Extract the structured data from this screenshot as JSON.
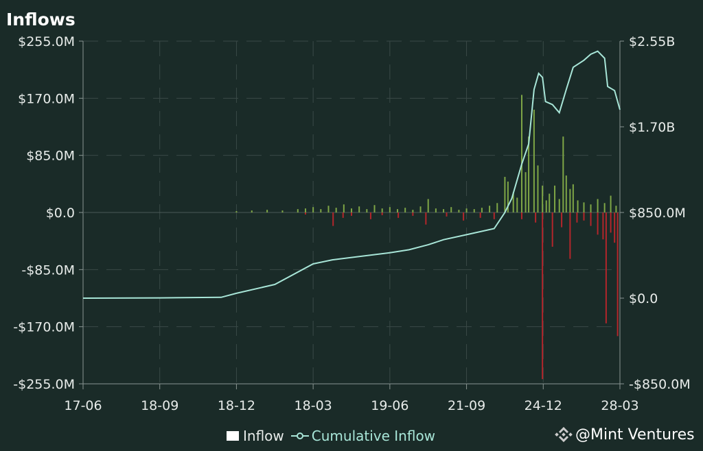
{
  "chart_data": {
    "type": "bar",
    "title": "Inflows",
    "x_ticks": [
      "17-06",
      "18-09",
      "18-12",
      "18-03",
      "19-06",
      "21-09",
      "24-12",
      "28-03"
    ],
    "y_left": {
      "ticks": [
        "$255.0M",
        "$170.0M",
        "$85.0M",
        "$0.0",
        "-$85.0M",
        "-$170.0M",
        "-$255.0M"
      ],
      "range": [
        -255,
        255
      ],
      "unit": "M USD"
    },
    "y_right": {
      "ticks": [
        "$2.55B",
        "$1.70B",
        "$850.0M",
        "$0.0",
        "-$850.0M"
      ],
      "range": [
        -850,
        2550
      ],
      "unit": "M USD"
    },
    "grid": true,
    "legend_placement": "bottom",
    "colors": {
      "positive": "#7fa646",
      "negative": "#b3262b",
      "cumulative": "#a8e6d8",
      "background": "#1a2b28"
    },
    "series": [
      {
        "name": "Inflow",
        "kind": "bar",
        "x_units": "tick index",
        "points": [
          [
            2.0,
            2
          ],
          [
            2.2,
            3
          ],
          [
            2.4,
            4
          ],
          [
            2.6,
            3
          ],
          [
            2.8,
            5
          ],
          [
            2.9,
            6
          ],
          [
            3.0,
            8
          ],
          [
            3.1,
            5
          ],
          [
            3.2,
            10
          ],
          [
            3.3,
            7
          ],
          [
            3.4,
            12
          ],
          [
            3.5,
            6
          ],
          [
            3.6,
            9
          ],
          [
            3.7,
            5
          ],
          [
            3.8,
            11
          ],
          [
            3.9,
            6
          ],
          [
            4.0,
            8
          ],
          [
            4.1,
            5
          ],
          [
            4.2,
            7
          ],
          [
            4.3,
            4
          ],
          [
            4.4,
            9
          ],
          [
            4.5,
            20
          ],
          [
            4.6,
            6
          ],
          [
            4.7,
            5
          ],
          [
            4.8,
            8
          ],
          [
            4.9,
            4
          ],
          [
            5.0,
            6
          ],
          [
            5.1,
            5
          ],
          [
            5.2,
            7
          ],
          [
            5.3,
            10
          ],
          [
            5.4,
            14
          ],
          [
            5.5,
            53
          ],
          [
            5.54,
            46
          ],
          [
            5.61,
            30
          ],
          [
            5.66,
            22
          ],
          [
            5.72,
            175
          ],
          [
            5.77,
            60
          ],
          [
            5.81,
            113
          ],
          [
            5.88,
            153
          ],
          [
            5.93,
            70
          ],
          [
            5.99,
            40
          ],
          [
            6.04,
            18
          ],
          [
            6.08,
            28
          ],
          [
            6.15,
            40
          ],
          [
            6.21,
            20
          ],
          [
            6.26,
            113
          ],
          [
            6.3,
            55
          ],
          [
            6.35,
            35
          ],
          [
            6.39,
            42
          ],
          [
            6.45,
            18
          ],
          [
            6.53,
            15
          ],
          [
            6.62,
            12
          ],
          [
            6.71,
            20
          ],
          [
            6.8,
            14
          ],
          [
            6.88,
            25
          ],
          [
            6.95,
            10
          ],
          [
            2.9,
            -3
          ],
          [
            3.26,
            -20
          ],
          [
            3.39,
            -8
          ],
          [
            3.5,
            -5
          ],
          [
            3.75,
            -10
          ],
          [
            3.9,
            -4
          ],
          [
            4.11,
            -8
          ],
          [
            4.3,
            -5
          ],
          [
            4.47,
            -18
          ],
          [
            4.74,
            -6
          ],
          [
            4.96,
            -12
          ],
          [
            5.18,
            -8
          ],
          [
            5.36,
            -10
          ],
          [
            5.72,
            -10
          ],
          [
            5.9,
            -15
          ],
          [
            5.99,
            -248
          ],
          [
            6.12,
            -51
          ],
          [
            6.24,
            -22
          ],
          [
            6.35,
            -69
          ],
          [
            6.44,
            -15
          ],
          [
            6.53,
            -12
          ],
          [
            6.62,
            -20
          ],
          [
            6.71,
            -33
          ],
          [
            6.78,
            -40
          ],
          [
            6.82,
            -165
          ],
          [
            6.88,
            -30
          ],
          [
            6.93,
            -45
          ],
          [
            6.97,
            -184
          ]
        ]
      },
      {
        "name": "Cumulative Inflow",
        "kind": "line",
        "axis": "right",
        "x_units": "tick index",
        "points": [
          [
            0,
            0
          ],
          [
            1,
            3
          ],
          [
            1.8,
            8
          ],
          [
            2.0,
            48
          ],
          [
            2.5,
            136
          ],
          [
            3.0,
            340
          ],
          [
            3.25,
            380
          ],
          [
            4.0,
            450
          ],
          [
            4.25,
            480
          ],
          [
            4.5,
            530
          ],
          [
            4.7,
            580
          ],
          [
            5.0,
            630
          ],
          [
            5.36,
            690
          ],
          [
            5.5,
            850
          ],
          [
            5.59,
            990
          ],
          [
            5.72,
            1330
          ],
          [
            5.81,
            1530
          ],
          [
            5.88,
            2070
          ],
          [
            5.94,
            2230
          ],
          [
            5.99,
            2190
          ],
          [
            6.03,
            1950
          ],
          [
            6.12,
            1920
          ],
          [
            6.21,
            1840
          ],
          [
            6.3,
            2070
          ],
          [
            6.39,
            2290
          ],
          [
            6.53,
            2360
          ],
          [
            6.62,
            2420
          ],
          [
            6.71,
            2450
          ],
          [
            6.8,
            2380
          ],
          [
            6.84,
            2100
          ],
          [
            6.93,
            2060
          ],
          [
            7.0,
            1870
          ]
        ]
      }
    ]
  },
  "legend": {
    "inflow": "Inflow",
    "cumulative": "Cumulative Inflow"
  },
  "watermark": "@Mint Ventures"
}
